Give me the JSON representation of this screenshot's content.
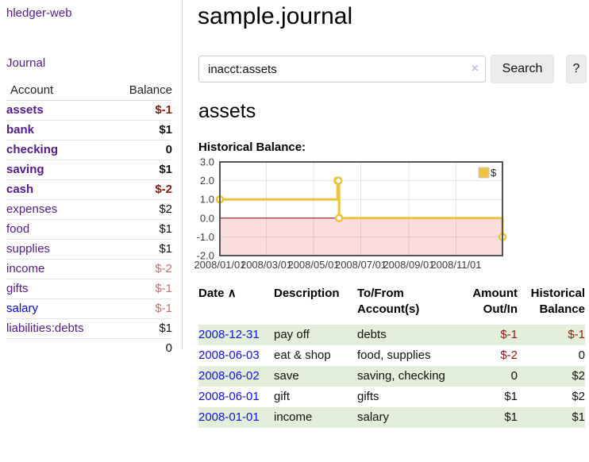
{
  "app": {
    "title": "hledger-web"
  },
  "sidebar": {
    "nav_journal": "Journal",
    "accounts": {
      "header_account": "Account",
      "header_balance": "Balance",
      "rows": [
        {
          "name": "assets",
          "balance": "$-1"
        },
        {
          "name": "bank",
          "balance": "$1"
        },
        {
          "name": "checking",
          "balance": "0"
        },
        {
          "name": "saving",
          "balance": "$1"
        },
        {
          "name": "cash",
          "balance": "$-2"
        },
        {
          "name": "expenses",
          "balance": "$2"
        },
        {
          "name": "food",
          "balance": "$1"
        },
        {
          "name": "supplies",
          "balance": "$1"
        },
        {
          "name": "income",
          "balance": "$-2"
        },
        {
          "name": "gifts",
          "balance": "$-1"
        },
        {
          "name": "salary",
          "balance": "$-1"
        },
        {
          "name": "liabilities:debts",
          "balance": "$1"
        }
      ],
      "total": "0"
    }
  },
  "main": {
    "title": "sample.journal",
    "search": {
      "value": "inacct:assets",
      "clear_icon": "×",
      "button_label": "Search",
      "help_label": "?"
    },
    "account_heading": "assets",
    "chart_title": "Historical Balance:",
    "chart_data": {
      "type": "line",
      "style": "step",
      "title": "Historical Balance",
      "xlabel": "",
      "ylabel": "",
      "xlim_days": [
        0,
        365
      ],
      "ylim": [
        -2,
        3
      ],
      "yticks": [
        3,
        2,
        1,
        0,
        -1,
        -2
      ],
      "ytick_labels": [
        "3.0",
        "2.0",
        "1.0",
        "0.0",
        "-1.0",
        "-2.0"
      ],
      "xticks": [
        {
          "day": 0,
          "label": "2008/01/01"
        },
        {
          "day": 60,
          "label": "2008/03/01"
        },
        {
          "day": 121,
          "label": "2008/05/01"
        },
        {
          "day": 182,
          "label": "2008/07/01"
        },
        {
          "day": 244,
          "label": "2008/09/01"
        },
        {
          "day": 305,
          "label": "2008/11/01"
        }
      ],
      "grid": true,
      "legend_position": "top-right",
      "series": [
        {
          "name": "$",
          "color": "#edc240",
          "points": [
            {
              "date": "2008-01-01",
              "day": 0,
              "value": 1
            },
            {
              "date": "2008-06-01",
              "day": 152,
              "value": 2
            },
            {
              "date": "2008-06-02",
              "day": 153,
              "value": 2
            },
            {
              "date": "2008-06-03",
              "day": 154,
              "value": 0
            },
            {
              "date": "2008-12-31",
              "day": 365,
              "value": -1
            }
          ]
        }
      ],
      "zero_line_color": "#8b0000",
      "negative_region_color": "#fbdddd",
      "plot_border_color": "#545454",
      "legend": {
        "label": "$",
        "swatch_color": "#edc240"
      }
    },
    "register": {
      "headers": {
        "date": "Date",
        "sort_indicator": "∧",
        "description": "Description",
        "accounts": "To/From Account(s)",
        "amount": "Amount Out/In",
        "balance": "Historical Balance"
      },
      "rows": [
        {
          "date": "2008-12-31",
          "description": "pay off",
          "accounts": "debts",
          "amount": "$-1",
          "balance": "$-1"
        },
        {
          "date": "2008-06-03",
          "description": "eat & shop",
          "accounts": "food, supplies",
          "amount": "$-2",
          "balance": "0"
        },
        {
          "date": "2008-06-02",
          "description": "save",
          "accounts": "saving, checking",
          "amount": "0",
          "balance": "$2"
        },
        {
          "date": "2008-06-01",
          "description": "gift",
          "accounts": "gifts",
          "amount": "$1",
          "balance": "$2"
        },
        {
          "date": "2008-01-01",
          "description": "income",
          "accounts": "salary",
          "amount": "$1",
          "balance": "$1"
        }
      ]
    }
  },
  "colors": {
    "accent_purple": "#551a8b",
    "link_blue": "#0000ee",
    "negative_strong": "#8c1a11",
    "negative_soft": "#c56f75",
    "row_green": "#e3efda",
    "chart_yellow": "#edc240",
    "chart_negative_bg": "#fbdddd",
    "chart_zero_line": "#8b0000"
  }
}
